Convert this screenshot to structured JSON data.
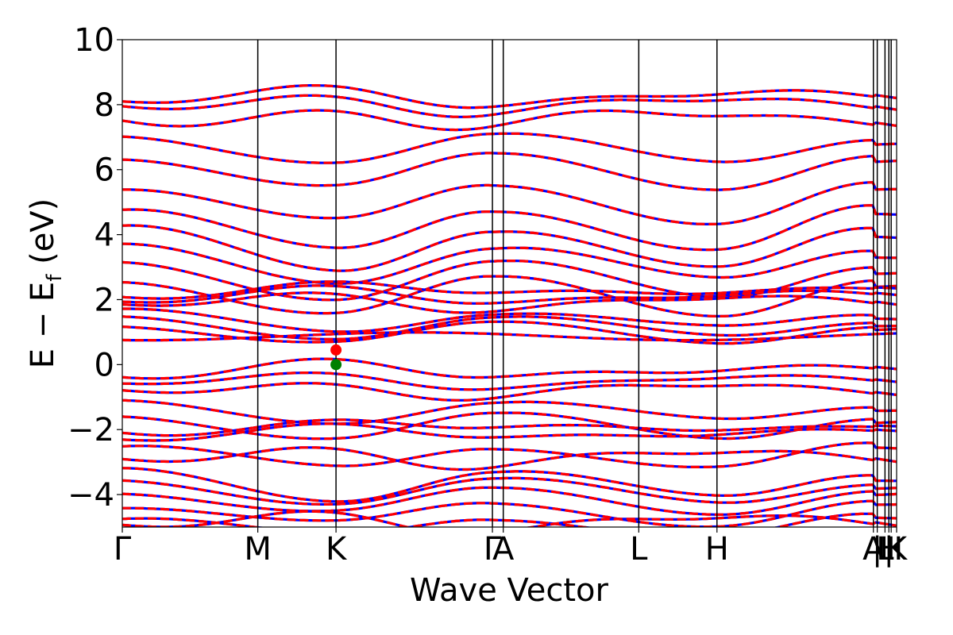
{
  "chart_data": {
    "type": "line",
    "title": "",
    "xlabel": "Wave Vector",
    "ylabel_main": "E − E",
    "ylabel_sub": "f",
    "ylabel_unit": " (eV)",
    "ylim": [
      -5,
      10
    ],
    "yticks": [
      -4,
      -2,
      0,
      2,
      4,
      6,
      8,
      10
    ],
    "ytick_labels": [
      "−4",
      "−2",
      "0",
      "2",
      "4",
      "6",
      "8",
      "10"
    ],
    "xlim": [
      0,
      1
    ],
    "kpoints": [
      {
        "label": "Γ",
        "x": 0.0
      },
      {
        "label": "M",
        "x": 0.175
      },
      {
        "label": "K",
        "x": 0.276
      },
      {
        "label": "Γ",
        "x": 0.478
      },
      {
        "label": "A",
        "x": 0.492
      },
      {
        "label": "L",
        "x": 0.667
      },
      {
        "label": "H",
        "x": 0.768
      },
      {
        "label": "A",
        "x": 0.97
      },
      {
        "label": "|",
        "x": 0.975
      },
      {
        "label": "L",
        "x": 0.985
      },
      {
        "label": "|",
        "x": 0.99
      },
      {
        "label": "H",
        "x": 0.993
      },
      {
        "label": "K",
        "x": 1.0
      }
    ],
    "series": [
      {
        "color": "#0000ff",
        "style": "solid"
      },
      {
        "color": "#ff0000",
        "style": "dashed"
      }
    ],
    "markers": [
      {
        "x": 0.276,
        "y": 0.45,
        "color": "#ff0000"
      },
      {
        "x": 0.276,
        "y": 0.0,
        "color": "#008000"
      }
    ],
    "band_groups": [
      {
        "base": 8.1,
        "type": "v",
        "amp": 0.45
      },
      {
        "base": 7.85,
        "type": "v",
        "amp": 0.5
      },
      {
        "base": 7.4,
        "type": "v",
        "amp": 0.6
      },
      {
        "base": 7.0,
        "type": "c",
        "amp": 0.7
      },
      {
        "base": 6.4,
        "type": "c",
        "amp": 0.9
      },
      {
        "base": 5.5,
        "type": "c",
        "amp": 1.1
      },
      {
        "base": 4.8,
        "type": "c",
        "amp": 1.3
      },
      {
        "base": 4.2,
        "type": "c",
        "amp": 1.3
      },
      {
        "base": 3.6,
        "type": "c",
        "amp": 1.0
      },
      {
        "base": 3.1,
        "type": "c",
        "amp": 1.0
      },
      {
        "base": 2.6,
        "type": "c",
        "amp": 1.0
      },
      {
        "base": 2.2,
        "type": "v",
        "amp": 0.3
      },
      {
        "base": 2.0,
        "type": "v",
        "amp": 0.35
      },
      {
        "base": 1.8,
        "type": "v",
        "amp": 0.4
      },
      {
        "base": 1.6,
        "type": "c",
        "amp": 0.5
      },
      {
        "base": 1.4,
        "type": "c",
        "amp": 0.5
      },
      {
        "base": 1.2,
        "type": "c",
        "amp": 0.45
      },
      {
        "base": 0.87,
        "type": "flat",
        "amp": 0.0
      },
      {
        "base": -0.3,
        "type": "v",
        "amp": 0.4
      },
      {
        "base": -0.6,
        "type": "v",
        "amp": 0.3
      },
      {
        "base": -0.9,
        "type": "v",
        "amp": 0.4
      },
      {
        "base": -1.2,
        "type": "c",
        "amp": 0.5
      },
      {
        "base": -1.6,
        "type": "c",
        "amp": 0.6
      },
      {
        "base": -2.0,
        "type": "v",
        "amp": 0.3
      },
      {
        "base": -2.2,
        "type": "v",
        "amp": 0.3
      },
      {
        "base": -2.5,
        "type": "c",
        "amp": 0.7
      },
      {
        "base": -3.0,
        "type": "v",
        "amp": 0.5
      },
      {
        "base": -3.3,
        "type": "c",
        "amp": 0.8
      },
      {
        "base": -3.6,
        "type": "c",
        "amp": 0.6
      },
      {
        "base": -3.9,
        "type": "c",
        "amp": 0.6
      },
      {
        "base": -4.3,
        "type": "c",
        "amp": 0.6
      },
      {
        "base": -4.7,
        "type": "c",
        "amp": 0.6
      },
      {
        "base": -5.0,
        "type": "v",
        "amp": 0.5
      }
    ]
  }
}
